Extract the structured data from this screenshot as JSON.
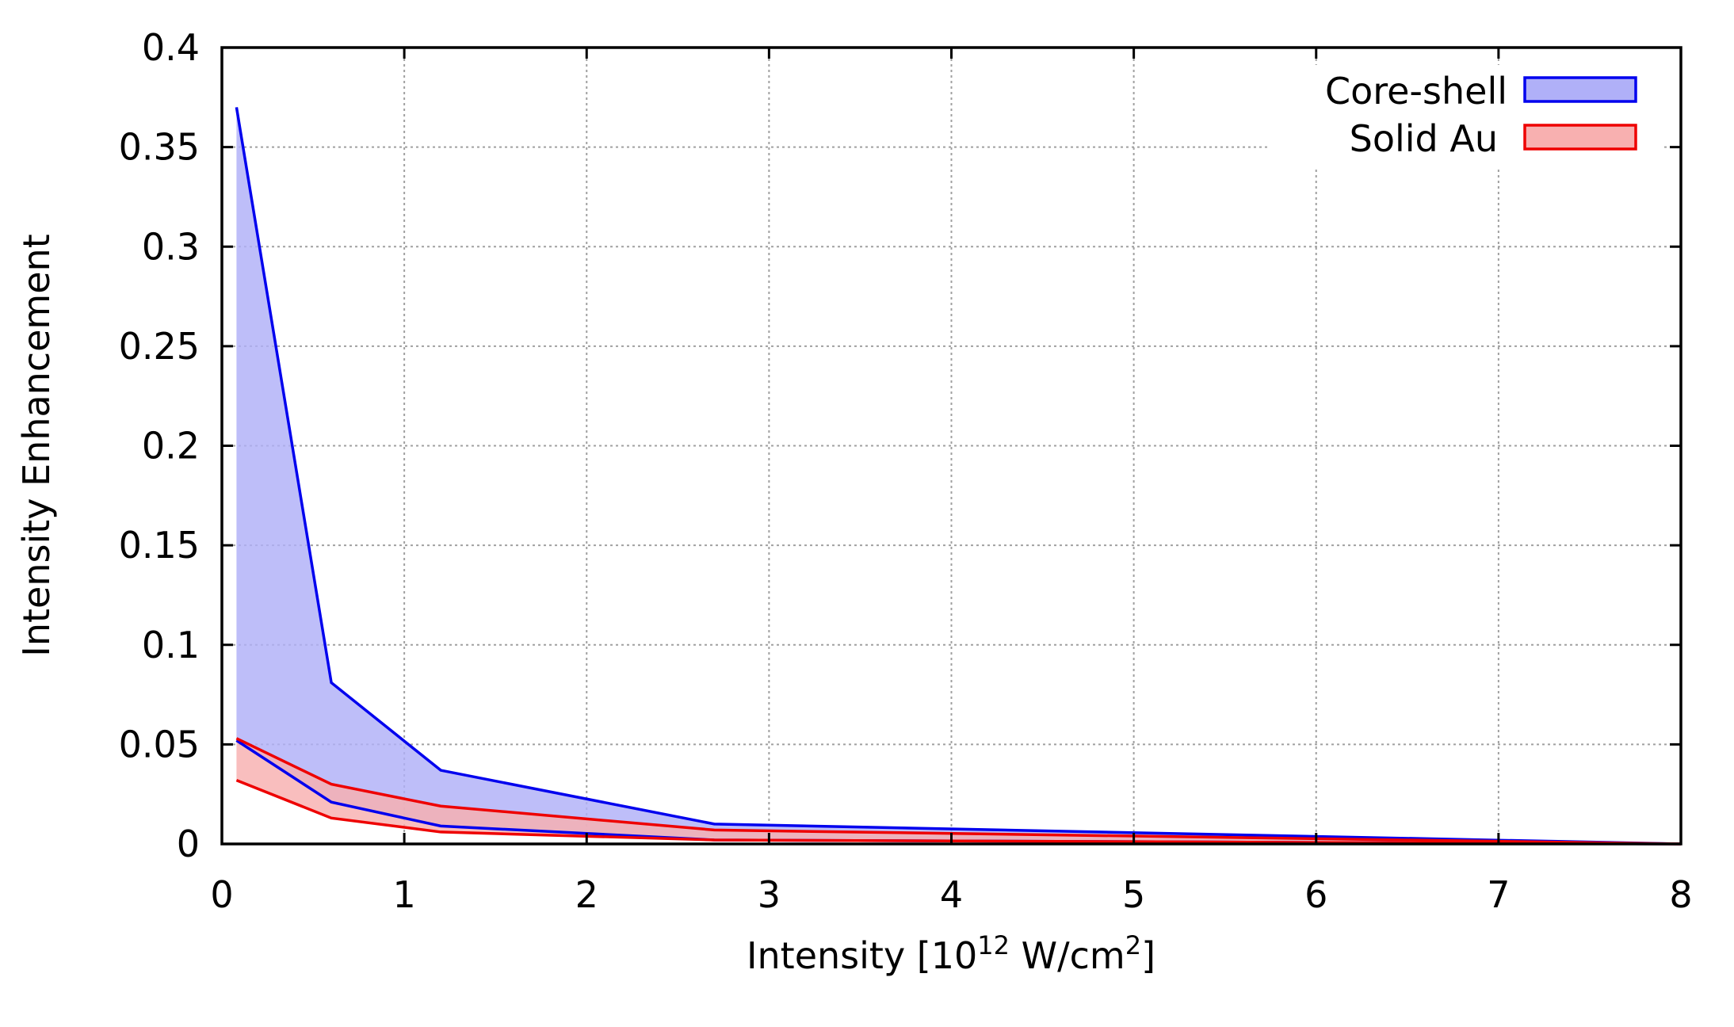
{
  "chart_data": {
    "type": "area",
    "xlabel": "Intensity [10",
    "xlabel_sup1": "12",
    "xlabel_mid": " W/cm",
    "xlabel_sup2": "2",
    "xlabel_end": "]",
    "ylabel": "Intensity Enhancement",
    "xlim": [
      0,
      8
    ],
    "ylim": [
      0,
      0.4
    ],
    "xticks": [
      "0",
      "1",
      "2",
      "3",
      "4",
      "5",
      "6",
      "7",
      "8"
    ],
    "yticks": [
      "0",
      "0.05",
      "0.1",
      "0.15",
      "0.2",
      "0.25",
      "0.3",
      "0.35",
      "0.4"
    ],
    "grid": true,
    "legend_position": "top-right",
    "series": [
      {
        "name": "Core-shell",
        "line_color": "#0000ee",
        "fill_color": "#b0b0f8",
        "x": [
          0.08,
          0.6,
          1.2,
          2.7,
          8.0
        ],
        "upper": [
          0.37,
          0.081,
          0.037,
          0.01,
          0.0
        ],
        "lower": [
          0.052,
          0.021,
          0.009,
          0.002,
          0.0
        ]
      },
      {
        "name": "Solid Au",
        "line_color": "#ee0000",
        "fill_color": "#f8b0b0",
        "x": [
          0.08,
          0.6,
          1.2,
          2.7,
          8.0
        ],
        "upper": [
          0.053,
          0.03,
          0.019,
          0.007,
          0.0
        ],
        "lower": [
          0.032,
          0.013,
          0.006,
          0.002,
          0.0
        ]
      }
    ]
  }
}
